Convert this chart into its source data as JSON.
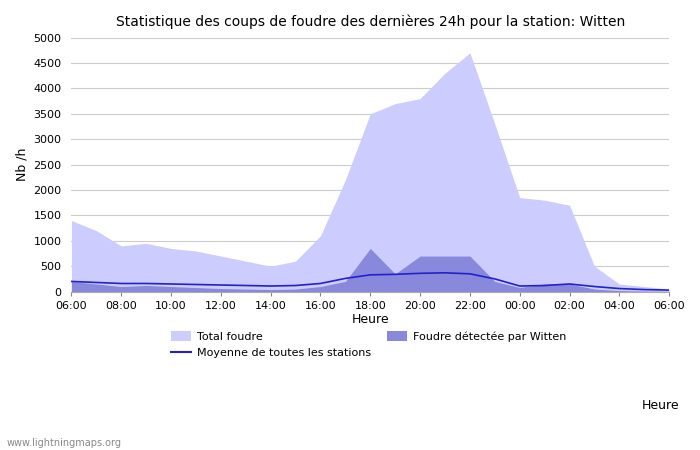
{
  "title": "Statistique des coups de foudre des dernières 24h pour la station: Witten",
  "xlabel": "Heure",
  "ylabel": "Nb /h",
  "watermark": "www.lightningmaps.org",
  "ylim": [
    0,
    5000
  ],
  "yticks": [
    0,
    500,
    1000,
    1500,
    2000,
    2500,
    3000,
    3500,
    4000,
    4500,
    5000
  ],
  "xtick_labels": [
    "06:00",
    "08:00",
    "10:00",
    "12:00",
    "14:00",
    "16:00",
    "18:00",
    "20:00",
    "22:00",
    "00:00",
    "02:00",
    "04:00",
    "06:00"
  ],
  "color_total": "#ccccff",
  "color_witten": "#8888dd",
  "color_moyenne": "#2222cc",
  "bg_color": "#ffffff",
  "grid_color": "#cccccc",
  "hours": [
    0,
    1,
    2,
    3,
    4,
    5,
    6,
    7,
    8,
    9,
    10,
    11,
    12,
    13,
    14,
    15,
    16,
    17,
    18,
    19,
    20,
    21,
    22,
    23,
    24
  ],
  "total_foudre": [
    1400,
    1200,
    900,
    950,
    850,
    800,
    700,
    600,
    500,
    600,
    1100,
    2200,
    3500,
    3700,
    3800,
    4300,
    4700,
    3300,
    1850,
    1800,
    1700,
    500,
    150,
    100,
    50
  ],
  "witten_foudre": [
    200,
    150,
    100,
    120,
    100,
    80,
    60,
    50,
    40,
    50,
    100,
    200,
    850,
    350,
    700,
    700,
    700,
    200,
    80,
    150,
    150,
    50,
    20,
    10,
    5
  ],
  "moyenne": [
    200,
    180,
    160,
    160,
    150,
    140,
    130,
    120,
    110,
    120,
    160,
    260,
    330,
    340,
    360,
    370,
    350,
    250,
    110,
    120,
    150,
    100,
    60,
    40,
    30
  ],
  "legend_total": "Total foudre",
  "legend_witten": "Foudre détectée par Witten",
  "legend_moyenne": "Moyenne de toutes les stations"
}
